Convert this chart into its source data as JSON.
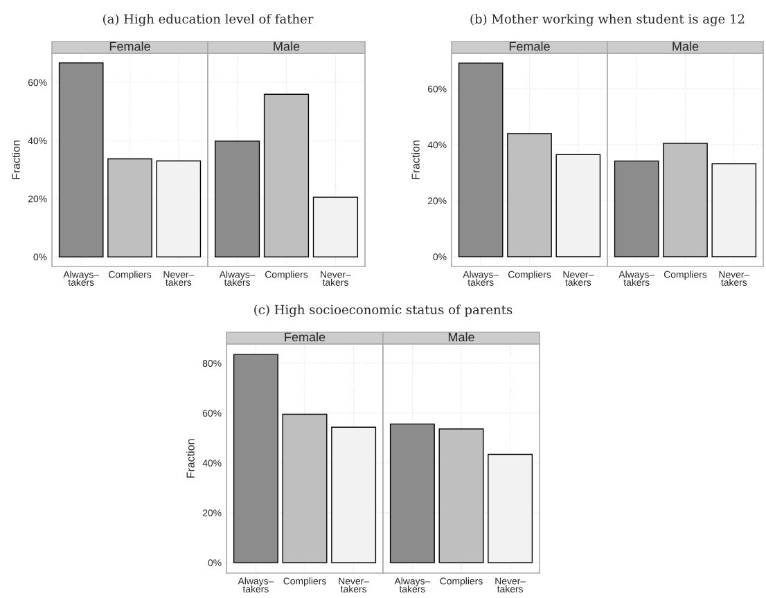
{
  "chart_data": [
    {
      "type": "bar",
      "title": "Female",
      "annotations": [
        "(a) High education level of father"
      ],
      "ylabel": "Fraction",
      "categories": [
        "Always–\ntakers",
        "Compliers",
        "Never–\ntakers"
      ],
      "values": [
        66.7,
        33.7,
        33.0
      ],
      "colors": [
        "#8c8c8c",
        "#bfbfbf",
        "#f2f2f2"
      ],
      "ylim": [
        -3.3,
        70.0
      ],
      "yticks": [
        {
          "value": 0,
          "label": "0%"
        },
        {
          "value": 20,
          "label": "20%"
        },
        {
          "value": 40,
          "label": "40%"
        },
        {
          "value": 60,
          "label": "60%"
        }
      ],
      "grid": true
    },
    {
      "type": "bar",
      "title": "Male",
      "categories": [
        "Always–\ntakers",
        "Compliers",
        "Never–\ntakers"
      ],
      "values": [
        39.8,
        55.9,
        20.5
      ],
      "colors": [
        "#8c8c8c",
        "#bfbfbf",
        "#f2f2f2"
      ],
      "ylim": [
        -3.3,
        70.0
      ],
      "yticks": [
        0,
        20,
        40,
        60
      ],
      "grid": true,
      "tick_labels": "x"
    },
    {
      "type": "bar",
      "title": "Female",
      "annotations": [
        "(b) Mother working when student is age 12"
      ],
      "ylabel": "Fraction",
      "categories": [
        "Always–\ntakers",
        "Compliers",
        "Never–\ntakers"
      ],
      "values": [
        69.2,
        44.0,
        36.5
      ],
      "colors": [
        "#8c8c8c",
        "#bfbfbf",
        "#f2f2f2"
      ],
      "ylim": [
        -3.5,
        72.7
      ],
      "yticks": [
        {
          "value": 0,
          "label": "0%"
        },
        {
          "value": 20,
          "label": "20%"
        },
        {
          "value": 40,
          "label": "40%"
        },
        {
          "value": 60,
          "label": "60%"
        }
      ],
      "grid": true
    },
    {
      "type": "bar",
      "title": "Male",
      "categories": [
        "Always–\ntakers",
        "Compliers",
        "Never–\ntakers"
      ],
      "values": [
        34.2,
        40.5,
        33.2
      ],
      "colors": [
        "#8c8c8c",
        "#bfbfbf",
        "#f2f2f2"
      ],
      "ylim": [
        -3.5,
        72.7
      ],
      "yticks": [
        0,
        20,
        40,
        60
      ],
      "grid": true,
      "tick_labels": "x"
    },
    {
      "type": "bar",
      "title": "Female",
      "annotations": [
        "(c) High socioeconomic status of parents"
      ],
      "ylabel": "Fraction",
      "categories": [
        "Always–\ntakers",
        "Compliers",
        "Never–\ntakers"
      ],
      "values": [
        83.5,
        59.5,
        54.3
      ],
      "colors": [
        "#8c8c8c",
        "#bfbfbf",
        "#f2f2f2"
      ],
      "ylim": [
        -4.2,
        87.7
      ],
      "yticks": [
        {
          "value": 0,
          "label": "0%"
        },
        {
          "value": 20,
          "label": "20%"
        },
        {
          "value": 40,
          "label": "40%"
        },
        {
          "value": 60,
          "label": "60%"
        },
        {
          "value": 80,
          "label": "80%"
        }
      ],
      "grid": true
    },
    {
      "type": "bar",
      "title": "Male",
      "categories": [
        "Always–\ntakers",
        "Compliers",
        "Never–\ntakers"
      ],
      "values": [
        55.6,
        53.6,
        43.4
      ],
      "colors": [
        "#8c8c8c",
        "#bfbfbf",
        "#f2f2f2"
      ],
      "ylim": [
        -4.2,
        87.7
      ],
      "yticks": [
        0,
        20,
        40,
        60,
        80
      ],
      "grid": true,
      "tick_labels": "x"
    }
  ]
}
